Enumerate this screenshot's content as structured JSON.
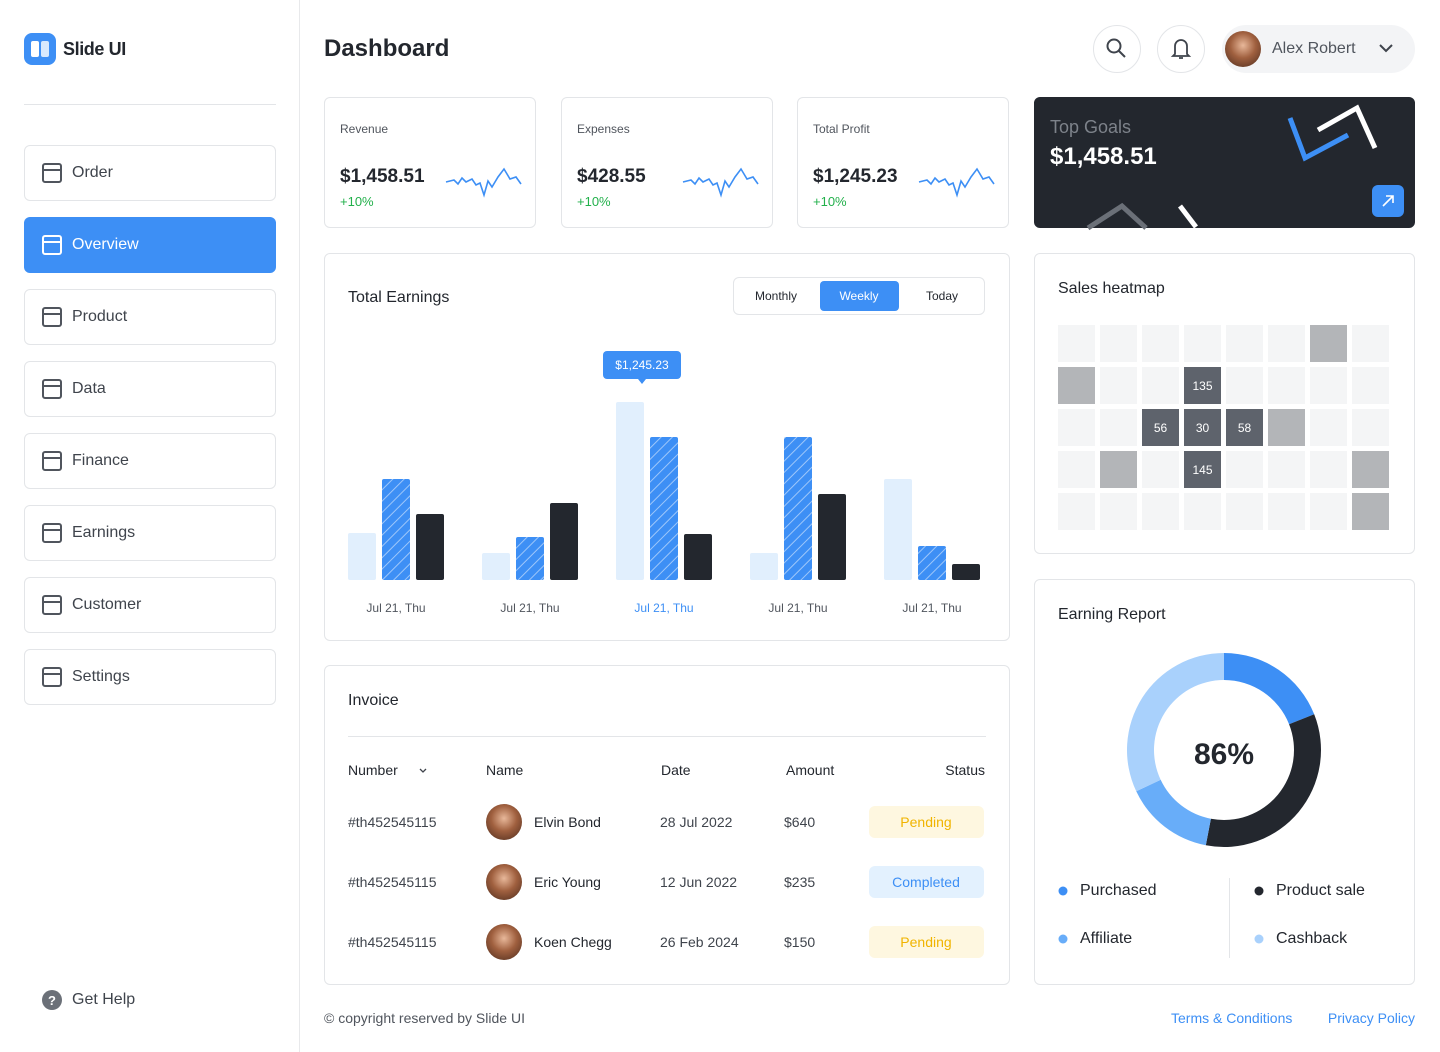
{
  "sidebar": {
    "brand": "Slide UI",
    "nav": [
      "Order",
      "Overview",
      "Product",
      "Data",
      "Finance",
      "Earnings",
      "Customer",
      "Settings"
    ],
    "active": 1,
    "help": "Get Help"
  },
  "header": {
    "title": "Dashboard",
    "user": "Alex Robert"
  },
  "stats": [
    {
      "label": "Revenue",
      "value": "$1,458.51",
      "change": "+10%"
    },
    {
      "label": "Expenses",
      "value": "$428.55",
      "change": "+10%"
    },
    {
      "label": "Total Profit",
      "value": "$1,245.23",
      "change": "+10%"
    }
  ],
  "goals": {
    "label": "Top Goals",
    "value": "$1,458.51"
  },
  "chart_data": [
    {
      "type": "bar",
      "title": "Total Earnings",
      "tabs": [
        "Monthly",
        "Weekly",
        "Today"
      ],
      "active_tab": 1,
      "categories": [
        "Jul 21, Thu",
        "Jul 21, Thu",
        "Jul 21, Thu",
        "Jul 21, Thu",
        "Jul 21, Thu"
      ],
      "highlight": 2,
      "tooltip": "$1,245.23",
      "series": [
        {
          "color": "#e1effd",
          "values": [
            47,
            27,
            178,
            27,
            101
          ]
        },
        {
          "color": "#3d8ff5",
          "pattern": "hatched",
          "values": [
            101,
            43,
            143,
            143,
            34
          ]
        },
        {
          "color": "#23272e",
          "values": [
            66,
            77,
            46,
            86,
            16
          ]
        }
      ]
    },
    {
      "type": "heatmap",
      "title": "Sales heatmap",
      "empty_color": "#f4f5f6",
      "levels": [
        {
          "from": 0,
          "color": "#b3b5b8",
          "show_value": false
        },
        {
          "from": 30,
          "color": "#5e636c",
          "show_value": true
        }
      ],
      "values": [
        [
          null,
          null,
          null,
          null,
          null,
          null,
          15,
          null
        ],
        [
          15,
          null,
          null,
          135,
          null,
          null,
          null,
          null
        ],
        [
          null,
          null,
          56,
          30,
          58,
          15,
          null,
          null
        ],
        [
          null,
          15,
          null,
          145,
          null,
          null,
          null,
          15
        ],
        [
          null,
          null,
          null,
          null,
          null,
          null,
          null,
          15
        ]
      ]
    },
    {
      "type": "pie",
      "title": "Earning Report",
      "center_label": "86%",
      "donut": true,
      "categories": [
        "Purchased",
        "Product sale",
        "Affiliate",
        "Cashback"
      ],
      "values": [
        19,
        34,
        15,
        32
      ],
      "colors": [
        "#3d8ff5",
        "#23272e",
        "#68adf9",
        "#a9d1fc"
      ]
    }
  ],
  "invoice": {
    "title": "Invoice",
    "columns": [
      "Number",
      "Name",
      "Date",
      "Amount",
      "Status"
    ],
    "rows": [
      {
        "number": "#th452545115",
        "name": "Elvin Bond",
        "date": "28 Jul 2022",
        "amount": "$640",
        "status": "Pending",
        "status_color": "#f0b400",
        "status_bg": "#fef7e0"
      },
      {
        "number": "#th452545115",
        "name": "Eric Young",
        "date": "12 Jun 2022",
        "amount": "$235",
        "status": "Completed",
        "status_color": "#3d8ff5",
        "status_bg": "#e3f1fe"
      },
      {
        "number": "#th452545115",
        "name": "Koen Chegg",
        "date": "26 Feb 2024",
        "amount": "$150",
        "status": "Pending",
        "status_color": "#f0b400",
        "status_bg": "#fef7e0"
      }
    ]
  },
  "footer": {
    "copyright": "© copyright reserved by Slide UI",
    "links": [
      "Terms & Conditions",
      "Privacy Policy"
    ]
  }
}
